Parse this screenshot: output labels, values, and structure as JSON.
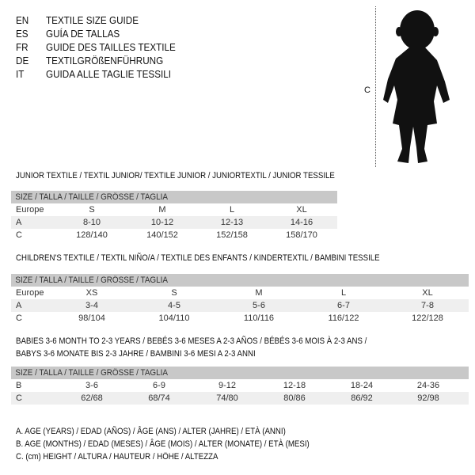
{
  "languages": [
    {
      "code": "EN",
      "name": "TEXTILE SIZE GUIDE"
    },
    {
      "code": "ES",
      "name": "GUÍA DE TALLAS"
    },
    {
      "code": "FR",
      "name": "GUIDE DES TAILLES TEXTILE"
    },
    {
      "code": "DE",
      "name": "TEXTILGRÖßENFÜHRUNG"
    },
    {
      "code": "IT",
      "name": "GUIDA ALLE TAGLIE TESSILI"
    }
  ],
  "figure": {
    "measure_label": "C"
  },
  "junior": {
    "title": "JUNIOR TEXTILE / TEXTIL JUNIOR/ TEXTILE JUNIOR / JUNIORTEXTIL / JUNIOR TESSILE",
    "header": "SIZE / TALLA / TAILLE / GRÖSSE / TAGLIA",
    "rows": [
      {
        "label": "Europe",
        "values": [
          "S",
          "M",
          "L",
          "XL"
        ]
      },
      {
        "label": "A",
        "values": [
          "8-10",
          "10-12",
          "12-13",
          "14-16"
        ]
      },
      {
        "label": "C",
        "values": [
          "128/140",
          "140/152",
          "152/158",
          "158/170"
        ]
      }
    ]
  },
  "children": {
    "title": "CHILDREN'S TEXTILE / TEXTIL NIÑO/A / TEXTILE DES ENFANTS / KINDERTEXTIL / BAMBINI TESSILE",
    "header": "SIZE / TALLA / TAILLE / GRÖSSE / TAGLIA",
    "rows": [
      {
        "label": "Europe",
        "values": [
          "XS",
          "S",
          "M",
          "L",
          "XL"
        ]
      },
      {
        "label": "A",
        "values": [
          "3-4",
          "4-5",
          "5-6",
          "6-7",
          "7-8"
        ]
      },
      {
        "label": "C",
        "values": [
          "98/104",
          "104/110",
          "110/116",
          "116/122",
          "122/128"
        ]
      }
    ]
  },
  "babies": {
    "title_1": "BABIES 3-6 MONTH TO 2-3 YEARS / BEBÉS 3-6 MESES A 2-3 AÑOS / BÉBÉS 3-6 MOIS À 2-3 ANS /",
    "title_2": "BABYS 3-6 MONATE BIS 2-3 JAHRE / BAMBINI 3-6 MESI A 2-3 ANNI",
    "header": "SIZE / TALLA / TAILLE / GRÖSSE / TAGLIA",
    "rows": [
      {
        "label": "B",
        "values": [
          "3-6",
          "6-9",
          "9-12",
          "12-18",
          "18-24",
          "24-36"
        ]
      },
      {
        "label": "C",
        "values": [
          "62/68",
          "68/74",
          "74/80",
          "80/86",
          "86/92",
          "92/98"
        ]
      }
    ]
  },
  "legend": [
    "A. AGE (YEARS) / EDAD (AÑOS) / ÂGE (ANS) / ALTER (JAHRE) / ETÀ (ANNI)",
    "B. AGE (MONTHS) / EDAD (MESES) / ÂGE (MOIS) / ALTER (MONATE) / ETÀ (MESI)",
    "C. (cm) HEIGHT / ALTURA / HAUTEUR / HÖHE / ALTEZZA"
  ]
}
